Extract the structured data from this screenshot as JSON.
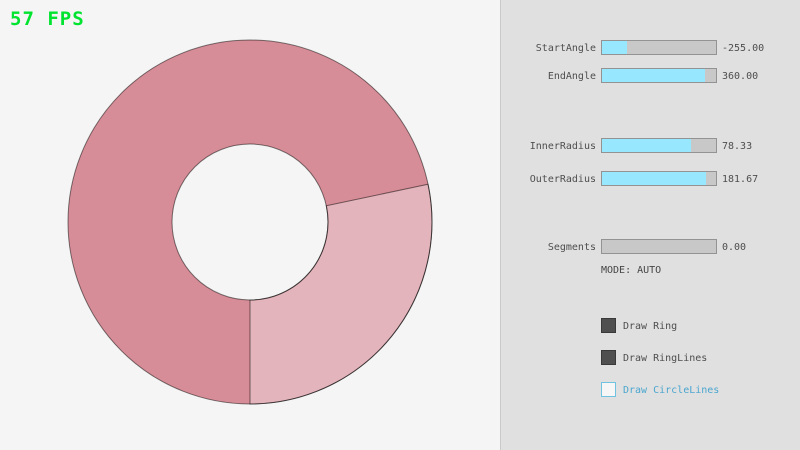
{
  "window": {
    "fps_label": "57 FPS"
  },
  "colors": {
    "fps_green": "#00e430",
    "accent_cyan": "#97e8ff",
    "accent_blue_text": "#4ba6cf",
    "canvas_bg": "#f5f5f5",
    "panel_bg": "#e0e0e0"
  },
  "ring": {
    "start_angle": -255.0,
    "end_angle": 360.0,
    "inner_radius": 78.33,
    "outer_radius": 181.67,
    "segments": 0.0,
    "mode": "AUTO",
    "overlap_color": "#d78d97",
    "single_color": "#e3b4bb"
  },
  "sliders": [
    {
      "label": "StartAngle",
      "value": "-255.00",
      "fill_pct": 22
    },
    {
      "label": "EndAngle",
      "value": "360.00",
      "fill_pct": 90
    },
    {
      "label": "InnerRadius",
      "value": "78.33",
      "fill_pct": 78
    },
    {
      "label": "OuterRadius",
      "value": "181.67",
      "fill_pct": 91
    },
    {
      "label": "Segments",
      "value": "0.00",
      "fill_pct": 0
    }
  ],
  "mode_text": "MODE: AUTO",
  "checkboxes": [
    {
      "label": "Draw Ring",
      "checked": true
    },
    {
      "label": "Draw RingLines",
      "checked": true
    },
    {
      "label": "Draw CircleLines",
      "checked": false
    }
  ]
}
